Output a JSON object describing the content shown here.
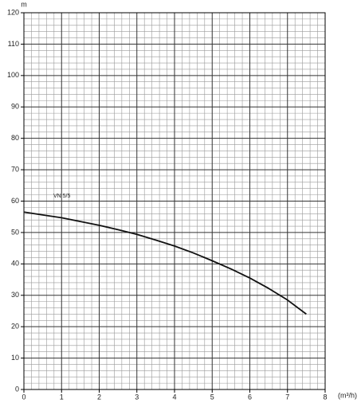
{
  "chart_data": {
    "type": "line",
    "x_label": "(m³/h)",
    "y_label": "m",
    "x": [
      0,
      0.5,
      1,
      1.5,
      2,
      2.5,
      3,
      3.5,
      4,
      4.5,
      5,
      5.5,
      6,
      6.5,
      7,
      7.5
    ],
    "series": [
      {
        "name": "VN 5/5",
        "color": "#111111",
        "values": [
          56.5,
          55.6,
          54.7,
          53.5,
          52.3,
          50.9,
          49.4,
          47.6,
          45.7,
          43.5,
          41,
          38.4,
          35.5,
          32.2,
          28.5,
          24
        ]
      }
    ],
    "xlim": [
      0,
      8
    ],
    "xticks": [
      0,
      1,
      2,
      3,
      4,
      5,
      6,
      7,
      8
    ],
    "ylim": [
      0,
      120
    ],
    "yticks": [
      0,
      10,
      20,
      30,
      40,
      50,
      60,
      70,
      80,
      90,
      100,
      110,
      120
    ],
    "grid": true
  }
}
